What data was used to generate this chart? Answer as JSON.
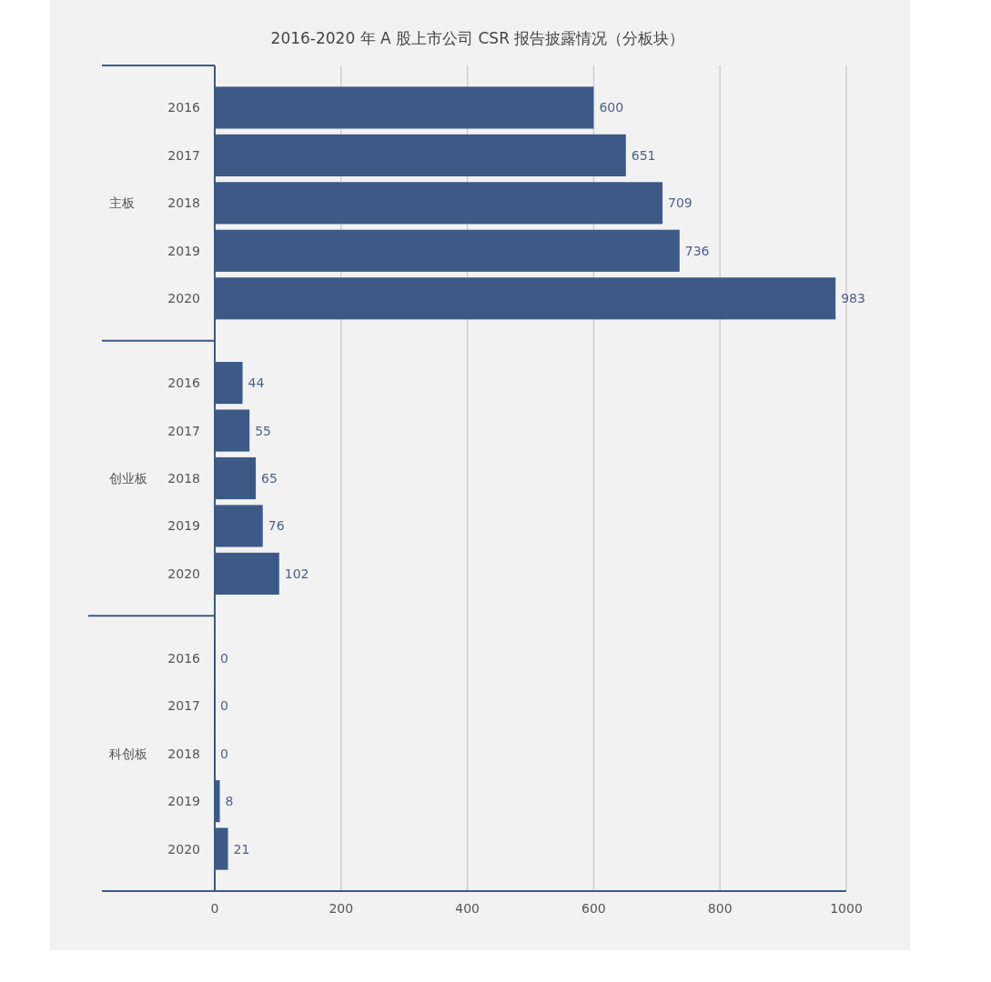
{
  "chart_data": {
    "type": "bar",
    "orientation": "horizontal",
    "title": "2016-2020 年 A 股上市公司 CSR 报告披露情况（分板块）",
    "categories": [
      "2016",
      "2017",
      "2018",
      "2019",
      "2020",
      "2016",
      "2017",
      "2018",
      "2019",
      "2020",
      "2016",
      "2017",
      "2018",
      "2019",
      "2020"
    ],
    "values": [
      600,
      651,
      709,
      736,
      983,
      44,
      55,
      65,
      76,
      102,
      0,
      0,
      0,
      8,
      21
    ],
    "color": "#3d5a86",
    "annotations": [
      "主板",
      "创业板",
      "科创板"
    ],
    "xlim": [
      0,
      1000
    ],
    "xticks": [
      0,
      200,
      400,
      600,
      800,
      1000
    ],
    "grid": "x",
    "data_labels": true
  }
}
